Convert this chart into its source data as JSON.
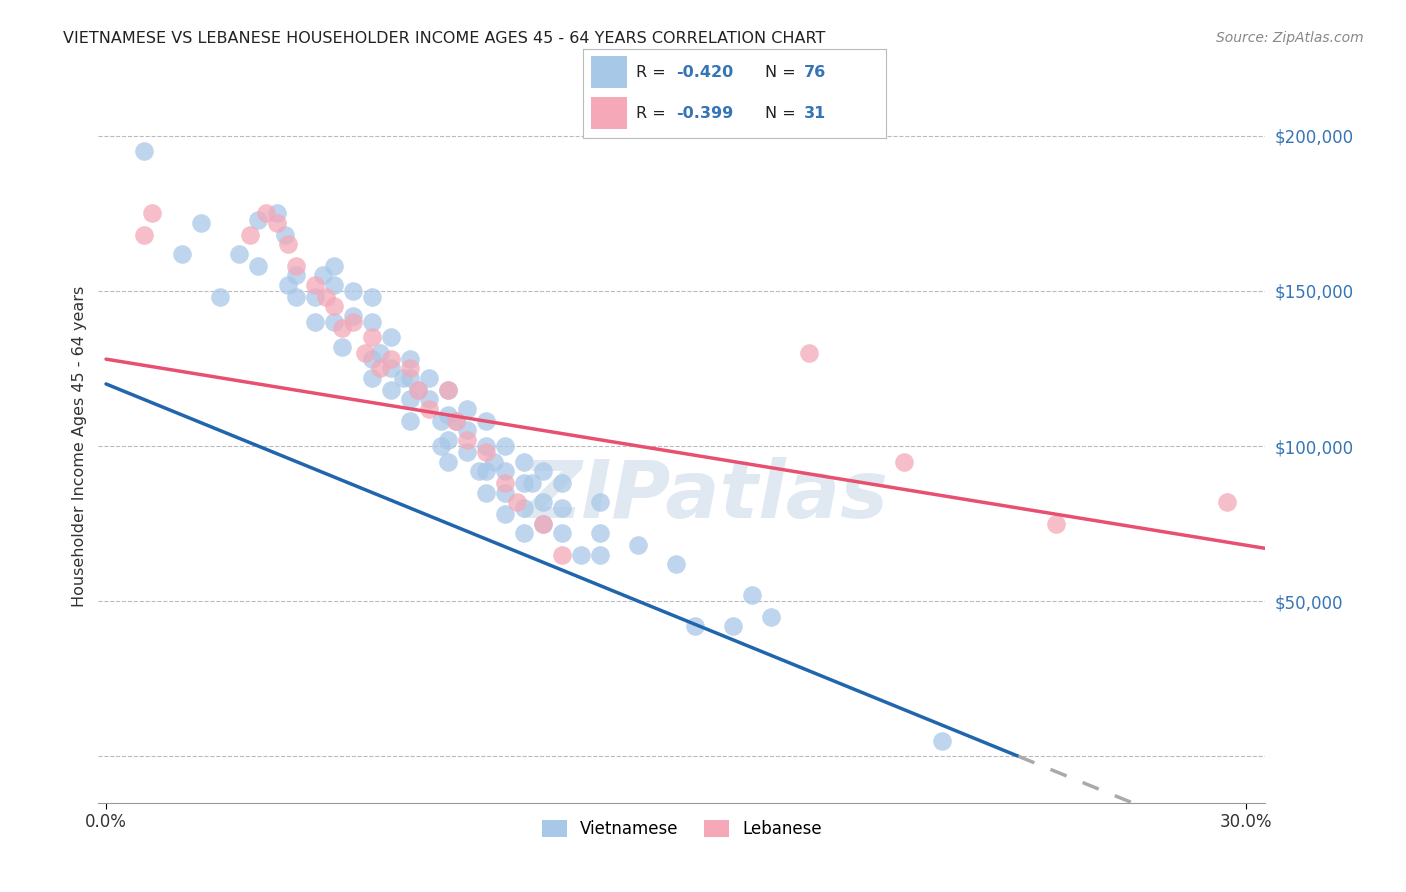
{
  "title": "VIETNAMESE VS LEBANESE HOUSEHOLDER INCOME AGES 45 - 64 YEARS CORRELATION CHART",
  "source": "Source: ZipAtlas.com",
  "ylabel": "Householder Income Ages 45 - 64 years",
  "x_min": 0.0,
  "x_max": 0.3,
  "y_min": -15000,
  "y_max": 215000,
  "y_ticks": [
    0,
    50000,
    100000,
    150000,
    200000
  ],
  "y_tick_labels": [
    "",
    "$50,000",
    "$100,000",
    "$150,000",
    "$200,000"
  ],
  "viet_color": "#a8c8e8",
  "leb_color": "#f4a8b8",
  "viet_line_color": "#2166ac",
  "leb_line_color": "#e85070",
  "watermark": "ZIPatlas",
  "background_color": "#ffffff",
  "grid_color": "#bbbbbb",
  "viet_intercept": 120000,
  "viet_slope": -500000,
  "leb_intercept": 128000,
  "leb_slope": -200000,
  "vietnamese_points": [
    [
      0.01,
      195000
    ],
    [
      0.02,
      162000
    ],
    [
      0.025,
      172000
    ],
    [
      0.03,
      148000
    ],
    [
      0.035,
      162000
    ],
    [
      0.04,
      158000
    ],
    [
      0.04,
      173000
    ],
    [
      0.045,
      175000
    ],
    [
      0.047,
      168000
    ],
    [
      0.048,
      152000
    ],
    [
      0.05,
      155000
    ],
    [
      0.05,
      148000
    ],
    [
      0.055,
      148000
    ],
    [
      0.055,
      140000
    ],
    [
      0.057,
      155000
    ],
    [
      0.06,
      158000
    ],
    [
      0.06,
      152000
    ],
    [
      0.06,
      140000
    ],
    [
      0.062,
      132000
    ],
    [
      0.065,
      150000
    ],
    [
      0.065,
      142000
    ],
    [
      0.07,
      148000
    ],
    [
      0.07,
      140000
    ],
    [
      0.07,
      128000
    ],
    [
      0.07,
      122000
    ],
    [
      0.072,
      130000
    ],
    [
      0.075,
      135000
    ],
    [
      0.075,
      125000
    ],
    [
      0.075,
      118000
    ],
    [
      0.078,
      122000
    ],
    [
      0.08,
      128000
    ],
    [
      0.08,
      122000
    ],
    [
      0.08,
      115000
    ],
    [
      0.08,
      108000
    ],
    [
      0.082,
      118000
    ],
    [
      0.085,
      122000
    ],
    [
      0.085,
      115000
    ],
    [
      0.088,
      108000
    ],
    [
      0.088,
      100000
    ],
    [
      0.09,
      118000
    ],
    [
      0.09,
      110000
    ],
    [
      0.09,
      102000
    ],
    [
      0.09,
      95000
    ],
    [
      0.092,
      108000
    ],
    [
      0.095,
      112000
    ],
    [
      0.095,
      105000
    ],
    [
      0.095,
      98000
    ],
    [
      0.098,
      92000
    ],
    [
      0.1,
      108000
    ],
    [
      0.1,
      100000
    ],
    [
      0.1,
      92000
    ],
    [
      0.1,
      85000
    ],
    [
      0.102,
      95000
    ],
    [
      0.105,
      100000
    ],
    [
      0.105,
      92000
    ],
    [
      0.105,
      85000
    ],
    [
      0.105,
      78000
    ],
    [
      0.11,
      95000
    ],
    [
      0.11,
      88000
    ],
    [
      0.11,
      80000
    ],
    [
      0.11,
      72000
    ],
    [
      0.112,
      88000
    ],
    [
      0.115,
      92000
    ],
    [
      0.115,
      82000
    ],
    [
      0.115,
      75000
    ],
    [
      0.12,
      88000
    ],
    [
      0.12,
      80000
    ],
    [
      0.12,
      72000
    ],
    [
      0.125,
      65000
    ],
    [
      0.13,
      82000
    ],
    [
      0.13,
      72000
    ],
    [
      0.13,
      65000
    ],
    [
      0.14,
      68000
    ],
    [
      0.15,
      62000
    ],
    [
      0.155,
      42000
    ],
    [
      0.165,
      42000
    ],
    [
      0.17,
      52000
    ],
    [
      0.175,
      45000
    ],
    [
      0.22,
      5000
    ]
  ],
  "lebanese_points": [
    [
      0.01,
      168000
    ],
    [
      0.012,
      175000
    ],
    [
      0.038,
      168000
    ],
    [
      0.042,
      175000
    ],
    [
      0.045,
      172000
    ],
    [
      0.048,
      165000
    ],
    [
      0.05,
      158000
    ],
    [
      0.055,
      152000
    ],
    [
      0.058,
      148000
    ],
    [
      0.06,
      145000
    ],
    [
      0.062,
      138000
    ],
    [
      0.065,
      140000
    ],
    [
      0.068,
      130000
    ],
    [
      0.07,
      135000
    ],
    [
      0.072,
      125000
    ],
    [
      0.075,
      128000
    ],
    [
      0.08,
      125000
    ],
    [
      0.082,
      118000
    ],
    [
      0.085,
      112000
    ],
    [
      0.09,
      118000
    ],
    [
      0.092,
      108000
    ],
    [
      0.095,
      102000
    ],
    [
      0.1,
      98000
    ],
    [
      0.105,
      88000
    ],
    [
      0.108,
      82000
    ],
    [
      0.115,
      75000
    ],
    [
      0.12,
      65000
    ],
    [
      0.185,
      130000
    ],
    [
      0.21,
      95000
    ],
    [
      0.25,
      75000
    ],
    [
      0.295,
      82000
    ]
  ]
}
